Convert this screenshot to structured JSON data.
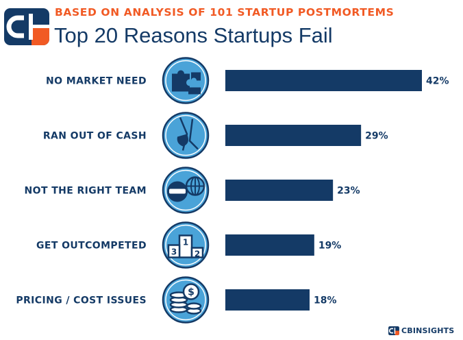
{
  "header": {
    "subtitle": "BASED ON ANALYSIS OF 101 STARTUP POSTMORTEMS",
    "title": "Top 20 Reasons Startups Fail"
  },
  "brand": {
    "text": "CBINSIGHTS"
  },
  "colors": {
    "navy": "#143a66",
    "orange": "#f15a24",
    "icon_blue": "#4aa3d8"
  },
  "chart_data": {
    "type": "bar",
    "orientation": "horizontal",
    "categories": [
      "NO MARKET NEED",
      "RAN OUT OF CASH",
      "NOT THE RIGHT TEAM",
      "GET OUTCOMPETED",
      "PRICING / COST ISSUES"
    ],
    "values": [
      42,
      29,
      23,
      19,
      18
    ],
    "value_labels": [
      "42%",
      "29%",
      "23%",
      "19%",
      "18%"
    ],
    "icons": [
      "puzzle-icon",
      "empty-pocket-icon",
      "team-icon",
      "podium-icon",
      "coins-icon"
    ],
    "unit": "%",
    "xlim": [
      0,
      42
    ],
    "grid": false,
    "legend": "none"
  }
}
